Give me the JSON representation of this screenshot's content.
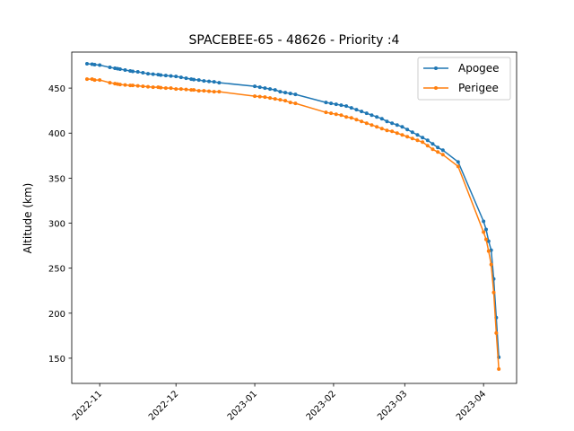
{
  "chart_data": {
    "type": "line",
    "title": "SPACEBEE-65 - 48626 - Priority :4",
    "xlabel": "",
    "ylabel": "Altitude (km)",
    "x_type": "date",
    "xlim": [
      "2022-10-21",
      "2023-04-14"
    ],
    "ylim": [
      122,
      490
    ],
    "x_ticks": [
      "2022-11-01",
      "2022-12-01",
      "2023-01-01",
      "2023-02-01",
      "2023-03-01",
      "2023-04-01"
    ],
    "x_tick_labels": [
      "2022-11",
      "2022-12",
      "2023-01",
      "2023-02",
      "2023-03",
      "2023-04"
    ],
    "y_ticks": [
      150,
      200,
      250,
      300,
      350,
      400,
      450
    ],
    "grid": false,
    "legend": "top-right",
    "series": [
      {
        "name": "Apogee",
        "color": "#1f77b4",
        "points": [
          [
            "2022-10-27",
            477
          ],
          [
            "2022-10-29",
            476.5
          ],
          [
            "2022-10-30",
            476
          ],
          [
            "2022-11-01",
            475.5
          ],
          [
            "2022-11-05",
            473
          ],
          [
            "2022-11-07",
            472
          ],
          [
            "2022-11-08",
            471.5
          ],
          [
            "2022-11-09",
            471
          ],
          [
            "2022-11-11",
            470
          ],
          [
            "2022-11-13",
            469
          ],
          [
            "2022-11-14",
            468.5
          ],
          [
            "2022-11-16",
            468
          ],
          [
            "2022-11-18",
            467
          ],
          [
            "2022-11-20",
            466
          ],
          [
            "2022-11-22",
            465.5
          ],
          [
            "2022-11-24",
            465
          ],
          [
            "2022-11-25",
            464.5
          ],
          [
            "2022-11-27",
            464
          ],
          [
            "2022-11-29",
            463.5
          ],
          [
            "2022-12-01",
            463
          ],
          [
            "2022-12-03",
            462
          ],
          [
            "2022-12-05",
            461
          ],
          [
            "2022-12-07",
            460
          ],
          [
            "2022-12-08",
            459.5
          ],
          [
            "2022-12-10",
            459
          ],
          [
            "2022-12-12",
            458
          ],
          [
            "2022-12-14",
            457.5
          ],
          [
            "2022-12-16",
            457
          ],
          [
            "2022-12-18",
            456
          ],
          [
            "2023-01-01",
            452
          ],
          [
            "2023-01-03",
            451
          ],
          [
            "2023-01-05",
            450
          ],
          [
            "2023-01-07",
            449
          ],
          [
            "2023-01-09",
            448
          ],
          [
            "2023-01-11",
            446
          ],
          [
            "2023-01-13",
            445
          ],
          [
            "2023-01-15",
            444
          ],
          [
            "2023-01-17",
            443
          ],
          [
            "2023-01-29",
            434
          ],
          [
            "2023-01-31",
            433
          ],
          [
            "2023-02-02",
            432
          ],
          [
            "2023-02-04",
            431
          ],
          [
            "2023-02-06",
            430
          ],
          [
            "2023-02-08",
            428
          ],
          [
            "2023-02-10",
            426
          ],
          [
            "2023-02-12",
            424
          ],
          [
            "2023-02-14",
            422
          ],
          [
            "2023-02-16",
            420
          ],
          [
            "2023-02-18",
            418
          ],
          [
            "2023-02-20",
            416
          ],
          [
            "2023-02-22",
            413
          ],
          [
            "2023-02-24",
            411
          ],
          [
            "2023-02-26",
            409
          ],
          [
            "2023-02-28",
            407
          ],
          [
            "2023-03-02",
            404
          ],
          [
            "2023-03-04",
            401
          ],
          [
            "2023-03-06",
            398
          ],
          [
            "2023-03-08",
            395
          ],
          [
            "2023-03-10",
            392
          ],
          [
            "2023-03-12",
            388
          ],
          [
            "2023-03-14",
            384
          ],
          [
            "2023-03-16",
            381
          ],
          [
            "2023-03-22",
            368
          ],
          [
            "2023-04-01",
            302
          ],
          [
            "2023-04-02",
            293
          ],
          [
            "2023-04-03",
            280
          ],
          [
            "2023-04-04",
            270
          ],
          [
            "2023-04-05",
            238
          ],
          [
            "2023-04-06",
            195
          ],
          [
            "2023-04-07",
            151
          ]
        ]
      },
      {
        "name": "Perigee",
        "color": "#ff7f0e",
        "points": [
          [
            "2022-10-27",
            460
          ],
          [
            "2022-10-29",
            460
          ],
          [
            "2022-10-30",
            459
          ],
          [
            "2022-11-01",
            459
          ],
          [
            "2022-11-05",
            456
          ],
          [
            "2022-11-07",
            455
          ],
          [
            "2022-11-08",
            454.5
          ],
          [
            "2022-11-09",
            454
          ],
          [
            "2022-11-11",
            453.5
          ],
          [
            "2022-11-13",
            453
          ],
          [
            "2022-11-14",
            453
          ],
          [
            "2022-11-16",
            452.5
          ],
          [
            "2022-11-18",
            452
          ],
          [
            "2022-11-20",
            451.5
          ],
          [
            "2022-11-22",
            451
          ],
          [
            "2022-11-24",
            451
          ],
          [
            "2022-11-25",
            450.5
          ],
          [
            "2022-11-27",
            450
          ],
          [
            "2022-11-29",
            450
          ],
          [
            "2022-12-01",
            449
          ],
          [
            "2022-12-03",
            449
          ],
          [
            "2022-12-05",
            448.5
          ],
          [
            "2022-12-07",
            448
          ],
          [
            "2022-12-08",
            448
          ],
          [
            "2022-12-10",
            447
          ],
          [
            "2022-12-12",
            447
          ],
          [
            "2022-12-14",
            446.5
          ],
          [
            "2022-12-16",
            446
          ],
          [
            "2022-12-18",
            446
          ],
          [
            "2023-01-01",
            441
          ],
          [
            "2023-01-03",
            440.5
          ],
          [
            "2023-01-05",
            440
          ],
          [
            "2023-01-07",
            439
          ],
          [
            "2023-01-09",
            438
          ],
          [
            "2023-01-11",
            437
          ],
          [
            "2023-01-13",
            436
          ],
          [
            "2023-01-15",
            434
          ],
          [
            "2023-01-17",
            433
          ],
          [
            "2023-01-29",
            423
          ],
          [
            "2023-01-31",
            422
          ],
          [
            "2023-02-02",
            421
          ],
          [
            "2023-02-04",
            420
          ],
          [
            "2023-02-06",
            418
          ],
          [
            "2023-02-08",
            417
          ],
          [
            "2023-02-10",
            415
          ],
          [
            "2023-02-12",
            413
          ],
          [
            "2023-02-14",
            411
          ],
          [
            "2023-02-16",
            409
          ],
          [
            "2023-02-18",
            407
          ],
          [
            "2023-02-20",
            405
          ],
          [
            "2023-02-22",
            403
          ],
          [
            "2023-02-24",
            402
          ],
          [
            "2023-02-26",
            400
          ],
          [
            "2023-02-28",
            398
          ],
          [
            "2023-03-02",
            396
          ],
          [
            "2023-03-04",
            394
          ],
          [
            "2023-03-06",
            392
          ],
          [
            "2023-03-08",
            390
          ],
          [
            "2023-03-10",
            386
          ],
          [
            "2023-03-12",
            382
          ],
          [
            "2023-03-14",
            379
          ],
          [
            "2023-03-16",
            376
          ],
          [
            "2023-03-22",
            363
          ],
          [
            "2023-04-01",
            290
          ],
          [
            "2023-04-02",
            282
          ],
          [
            "2023-04-03",
            269
          ],
          [
            "2023-04-04",
            254
          ],
          [
            "2023-04-05",
            223
          ],
          [
            "2023-04-06",
            178
          ],
          [
            "2023-04-07",
            138
          ]
        ]
      }
    ]
  }
}
